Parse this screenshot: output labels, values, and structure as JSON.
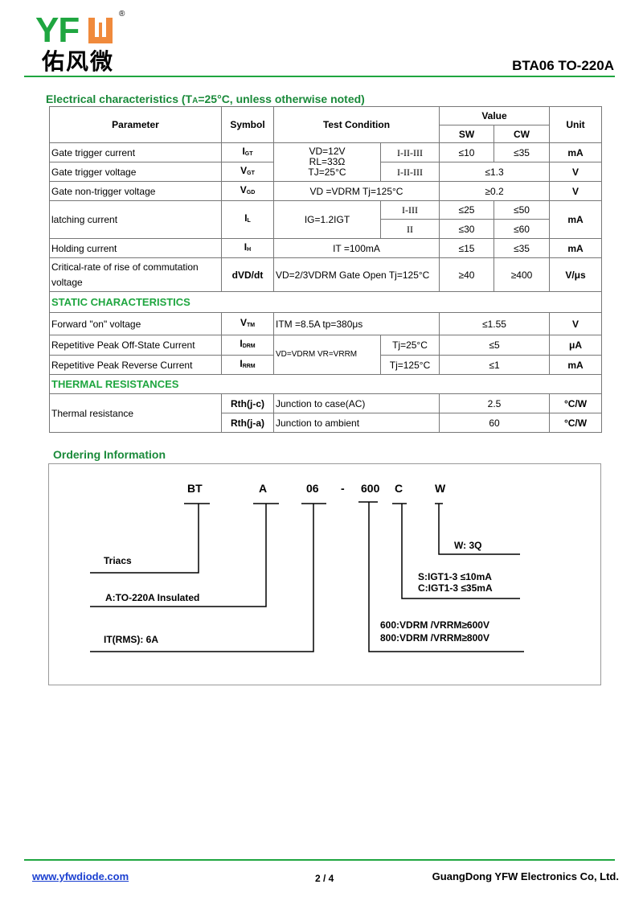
{
  "header": {
    "logo_text": "YFW",
    "logo_cn": "佑风微",
    "registered": "®",
    "title": "BTA06 TO-220A"
  },
  "colors": {
    "brand_green": "#1fa640",
    "brand_orange": "#f08a3c",
    "section_green": "#1a8a3a"
  },
  "electrical": {
    "heading": "Electrical characteristics (TA=25°C, unless otherwise noted)",
    "headers": {
      "parameter": "Parameter",
      "symbol": "Symbol",
      "test_condition": "Test Condition",
      "value": "Value",
      "sw": "SW",
      "cw": "CW",
      "unit": "Unit"
    },
    "rows": {
      "igt": {
        "param": "Gate trigger current",
        "sym": "I",
        "sub": "GT",
        "quad": "I-II-III",
        "sw": "≤10",
        "cw": "≤35",
        "unit": "mA"
      },
      "vgt": {
        "param": "Gate trigger voltage",
        "sym": "V",
        "sub": "GT",
        "quad": "I-II-III",
        "val": "≤1.3",
        "unit": "V"
      },
      "cond_shared": {
        "l1": "VD=12V",
        "l2": "RL=33Ω",
        "l3": "TJ=25°C"
      },
      "vgd": {
        "param": "Gate non-trigger voltage",
        "sym": "V",
        "sub": "GD",
        "cond": "VD =VDRM Tj=125°C",
        "val": "≥0.2",
        "unit": "V"
      },
      "il": {
        "param": "latching current",
        "sym": "I",
        "sub": "L",
        "cond": "IG=1.2IGT",
        "q1": "I-III",
        "sw1": "≤25",
        "cw1": "≤50",
        "q2": "II",
        "sw2": "≤30",
        "cw2": "≤60",
        "unit": "mA"
      },
      "ih": {
        "param": "Holding current",
        "sym": "I",
        "sub": "H",
        "cond": "IT =100mA",
        "sw": "≤15",
        "cw": "≤35",
        "unit": "mA"
      },
      "dvdt": {
        "param": "Critical-rate of rise of commutation voltage",
        "sym": "dVD/dt",
        "cond": "VD=2/3VDRM Gate Open Tj=125°C",
        "sw": "≥40",
        "cw": "≥400",
        "unit": "V/μs"
      }
    },
    "static_heading": "STATIC CHARACTERISTICS",
    "static": {
      "vtm": {
        "param": "Forward \"on\" voltage",
        "sym": "V",
        "sub": "TM",
        "cond": "ITM =8.5A  tp=380μs",
        "val": "≤1.55",
        "unit": "V"
      },
      "idrm": {
        "param": "Repetitive Peak Off-State Current",
        "sym": "I",
        "sub": "DRM",
        "tj": "Tj=25°C",
        "val": "≤5",
        "unit": "μA"
      },
      "irrm": {
        "param": "Repetitive Peak Reverse Current",
        "sym": "I",
        "sub": "RRM",
        "tj": "Tj=125°C",
        "val": "≤1",
        "unit": "mA"
      },
      "cond_shared": "VD=VDRM VR=VRRM"
    },
    "thermal_heading": "THERMAL RESISTANCES",
    "thermal": {
      "param": "Thermal resistance",
      "rows": [
        {
          "sym": "Rth(j-c)",
          "cond": "Junction to case(AC)",
          "val": "2.5",
          "unit": "°C/W"
        },
        {
          "sym": "Rth(j-a)",
          "cond": "Junction to ambient",
          "val": "60",
          "unit": "°C/W"
        }
      ]
    }
  },
  "ordering": {
    "heading": "Ordering Information",
    "code": [
      "BT",
      "A",
      "06",
      "-",
      "600",
      "C",
      "W"
    ],
    "triacs": "Triacs",
    "package": "A:TO-220A Insulated",
    "current": "IT(RMS): 6A",
    "v600": "600:VDRM /VRRM≥600V",
    "v800": "800:VDRM /VRRM≥800V",
    "s": "S:IGT1-3 ≤10mA",
    "c": "C:IGT1-3 ≤35mA",
    "w": "W: 3Q"
  },
  "footer": {
    "website": "www.yfwdiode.com",
    "page": "2 / 4",
    "company": "GuangDong YFW Electronics Co, Ltd."
  }
}
